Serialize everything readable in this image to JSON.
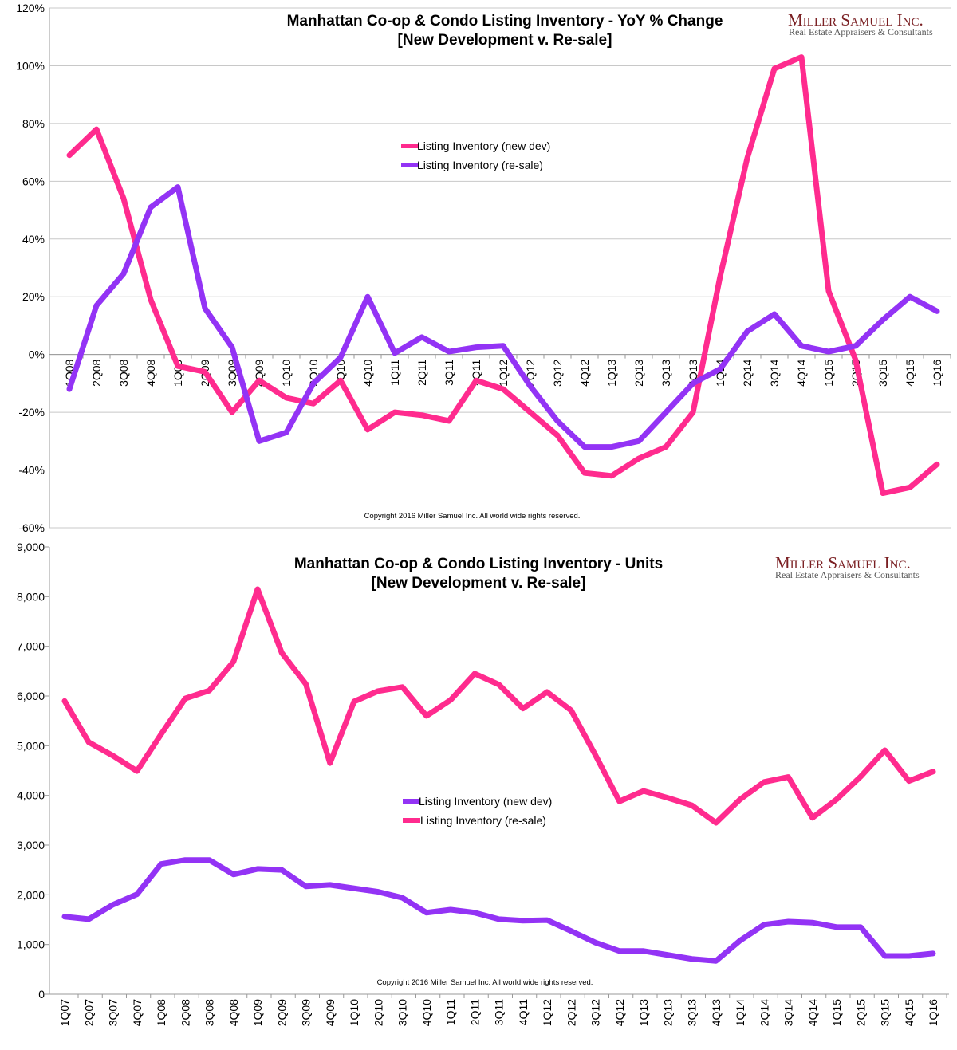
{
  "colors": {
    "new_dev": "#ff2b8e",
    "resale": "#9333f5",
    "grid": "#c8c8c8"
  },
  "logo": {
    "name": "Miller Samuel Inc.",
    "tagline": "Real Estate Appraisers & Consultants"
  },
  "chart_data": [
    {
      "type": "line",
      "title": "Manhattan Co-op & Condo Listing Inventory - YoY % Change",
      "subtitle": "[New Development v. Re-sale]",
      "xlabel": "",
      "ylabel": "",
      "ylim": [
        -60,
        120
      ],
      "yticks": [
        -60,
        -40,
        -20,
        0,
        20,
        40,
        60,
        80,
        100,
        120
      ],
      "ytick_suffix": "%",
      "grid": true,
      "legend": "top-center",
      "copyright": "Copyright 2016 Miller Samuel Inc.  All world wide rights reserved.",
      "categories": [
        "1Q08",
        "2Q08",
        "3Q08",
        "4Q08",
        "1Q09",
        "2Q09",
        "3Q09",
        "4Q09",
        "1Q10",
        "2Q10",
        "3Q10",
        "4Q10",
        "1Q11",
        "2Q11",
        "3Q11",
        "4Q11",
        "1Q12",
        "2Q12",
        "3Q12",
        "4Q12",
        "1Q13",
        "2Q13",
        "3Q13",
        "4Q13",
        "1Q14",
        "2Q14",
        "3Q14",
        "4Q14",
        "1Q15",
        "2Q15",
        "3Q15",
        "4Q15",
        "1Q16"
      ],
      "series": [
        {
          "name": "Listing Inventory (new dev)",
          "color_key": "new_dev",
          "values": [
            69,
            78,
            54,
            19,
            -4,
            -6,
            -20,
            -9,
            -15,
            -17,
            -9,
            -26,
            -20,
            -21,
            -23,
            -9,
            -12,
            -20,
            -28,
            -41,
            -42,
            -36,
            -32,
            -20,
            27,
            68,
            99,
            103,
            22,
            -2,
            -48,
            -46,
            -38
          ]
        },
        {
          "name": "Listing Inventory (re-sale)",
          "color_key": "resale",
          "values": [
            -12,
            17,
            28,
            51,
            58,
            16,
            2.5,
            -30,
            -27,
            -10,
            -1,
            20,
            0.5,
            6,
            1,
            2.5,
            3,
            -11,
            -23,
            -32,
            -32,
            -30,
            -20,
            -10,
            -5,
            8,
            14,
            3,
            1,
            3,
            12,
            20,
            15
          ]
        }
      ]
    },
    {
      "type": "line",
      "title": "Manhattan Co-op & Condo Listing Inventory - Units",
      "subtitle": "[New Development v. Re-sale]",
      "xlabel": "",
      "ylabel": "",
      "ylim": [
        0,
        9000
      ],
      "yticks": [
        0,
        1000,
        2000,
        3000,
        4000,
        5000,
        6000,
        7000,
        8000,
        9000
      ],
      "ytick_labels": [
        "0",
        "1,000",
        "2,000",
        "3,000",
        "4,000",
        "5,000",
        "6,000",
        "7,000",
        "8,000",
        "9,000"
      ],
      "grid": false,
      "legend": "center",
      "copyright": "Copyright 2016 Miller Samuel Inc.  All world wide rights reserved.",
      "categories": [
        "1Q07",
        "2Q07",
        "3Q07",
        "4Q07",
        "1Q08",
        "2Q08",
        "3Q08",
        "4Q08",
        "1Q09",
        "2Q09",
        "3Q09",
        "4Q09",
        "1Q10",
        "2Q10",
        "3Q10",
        "4Q10",
        "1Q11",
        "2Q11",
        "3Q11",
        "4Q11",
        "1Q12",
        "2Q12",
        "3Q12",
        "4Q12",
        "1Q13",
        "2Q13",
        "3Q13",
        "4Q13",
        "1Q14",
        "2Q14",
        "3Q14",
        "4Q14",
        "1Q15",
        "2Q15",
        "3Q15",
        "4Q15",
        "1Q16"
      ],
      "series": [
        {
          "name": "Listing Inventory (new dev)",
          "color_key": "resale",
          "values": [
            1560,
            1510,
            1800,
            2010,
            2620,
            2700,
            2700,
            2410,
            2520,
            2500,
            2170,
            2200,
            2130,
            2060,
            1940,
            1640,
            1700,
            1640,
            1510,
            1480,
            1490,
            1270,
            1040,
            870,
            870,
            790,
            710,
            670,
            1080,
            1400,
            1460,
            1440,
            1350,
            1350,
            770,
            770,
            820
          ]
        },
        {
          "name": "Listing Inventory (re-sale)",
          "color_key": "new_dev",
          "values": [
            5900,
            5070,
            4800,
            4490,
            5230,
            5950,
            6110,
            6690,
            8150,
            6870,
            6240,
            4650,
            5890,
            6100,
            6180,
            5600,
            5920,
            6450,
            6230,
            5750,
            6080,
            5710,
            4815,
            3880,
            4090,
            3950,
            3800,
            3450,
            3920,
            4270,
            4370,
            3550,
            3920,
            4380,
            4910,
            4290,
            4480
          ]
        }
      ]
    }
  ]
}
